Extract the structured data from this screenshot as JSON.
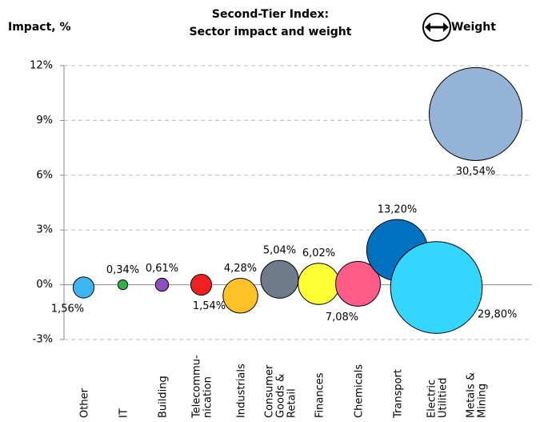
{
  "chart_data": {
    "type": "bubble",
    "title": "Second-Tier Index:",
    "subtitle": "Sector impact and weight",
    "y_label": "Impact, %",
    "size_legend": "Weight",
    "categories": [
      "Other",
      "IT",
      "Building",
      "Telecommu-\nnication",
      "Industrials",
      "Consumer\nGoods &\nRetail",
      "Finances",
      "Chemicals",
      "Transport",
      "Electric\nUtilitied",
      "Metals &\nMining"
    ],
    "values": [
      -0.15,
      0,
      0,
      0,
      -0.6,
      0.3,
      0.05,
      0.05,
      1.9,
      -0.15,
      9.35
    ],
    "sizes": [
      1.56,
      0.34,
      0.61,
      1.54,
      4.28,
      5.04,
      6.02,
      7.08,
      13.2,
      29.8,
      30.54
    ],
    "value_labels": [
      "1,56%",
      "0,34%",
      "0,61%",
      "1,54%",
      "4,28%",
      "5,04%",
      "6,02%",
      "7,08%",
      "13,20%",
      "29,80%",
      "30,54%"
    ],
    "colors": [
      "#3db5f0",
      "#33b04a",
      "#8a4fc0",
      "#f02020",
      "#ffc125",
      "#6e7b8b",
      "#ffff33",
      "#ff5c8a",
      "#0070c0",
      "#33d6ff",
      "#95b3d7"
    ],
    "ylim": [
      -3,
      12
    ],
    "yticks": [
      {
        "value": -3,
        "label": "-3%"
      },
      {
        "value": 0,
        "label": "0%"
      },
      {
        "value": 3,
        "label": "3%"
      },
      {
        "value": 6,
        "label": "6%"
      },
      {
        "value": 9,
        "label": "9%"
      },
      {
        "value": 12,
        "label": "12%"
      }
    ],
    "grid": true
  }
}
